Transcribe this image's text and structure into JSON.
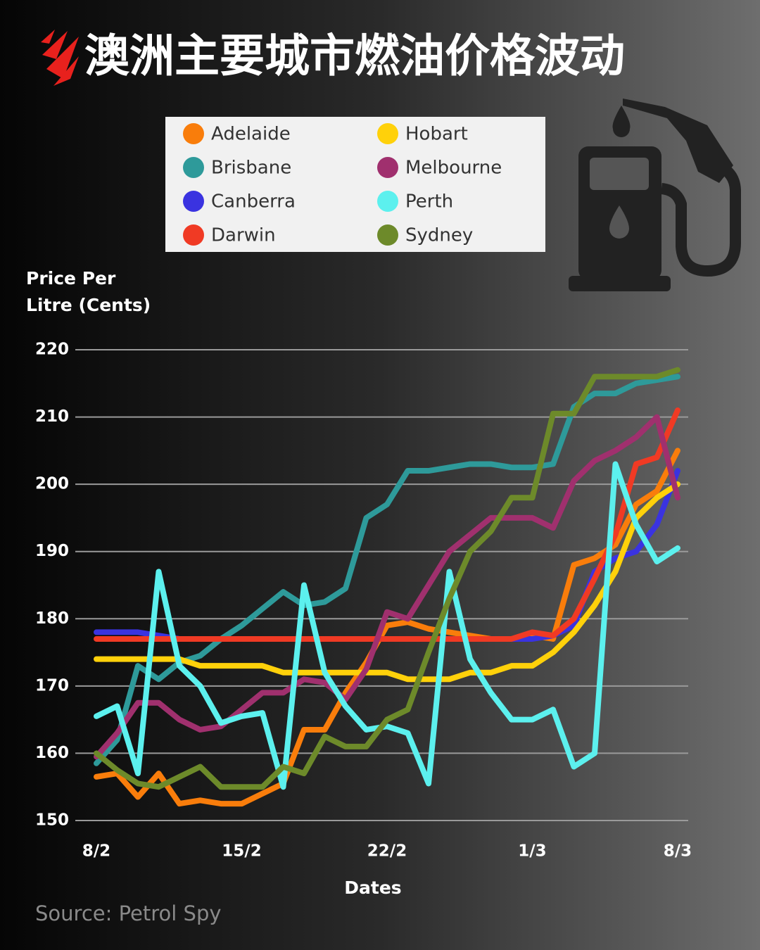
{
  "chart_data": {
    "type": "line",
    "title": "澳洲主要城市燃油价格波动",
    "ylabel": "Price Per Litre (Cents)",
    "xlabel": "Dates",
    "source": "Source: Petrol Spy",
    "categories": [
      "8/2",
      null,
      null,
      null,
      null,
      null,
      null,
      "15/2",
      null,
      null,
      null,
      null,
      null,
      null,
      "22/2",
      null,
      null,
      null,
      null,
      null,
      null,
      "1/3",
      null,
      null,
      null,
      null,
      null,
      null,
      "8/3"
    ],
    "series": [
      {
        "name": "Adelaide",
        "color": "#f97d0b",
        "values": [
          156.5,
          157,
          153.5,
          157,
          152.5,
          153,
          152.5,
          152.5,
          154,
          155.5,
          163.5,
          163.5,
          169,
          173.5,
          179,
          179.5,
          178.5,
          178,
          177.5,
          177,
          177,
          177.5,
          177,
          188,
          189,
          191,
          197,
          199,
          205
        ]
      },
      {
        "name": "Brisbane",
        "color": "#2e9a9a",
        "values": [
          158.5,
          162,
          173,
          171,
          173.5,
          174.5,
          177,
          179,
          181.5,
          184,
          182,
          182.5,
          184.5,
          195,
          197,
          202,
          202,
          202.5,
          203,
          203,
          202.5,
          202.5,
          203,
          211.5,
          213.5,
          213.5,
          215,
          215.5,
          216
        ]
      },
      {
        "name": "Canberra",
        "color": "#3a33e0",
        "values": [
          178,
          178,
          178,
          177.5,
          177,
          177,
          177,
          177,
          177,
          177,
          177,
          177,
          177,
          177,
          177,
          177,
          177,
          177,
          177,
          177,
          177,
          177,
          177.5,
          179,
          187,
          189,
          190,
          194,
          202
        ]
      },
      {
        "name": "Darwin",
        "color": "#f03a24",
        "values": [
          177,
          177,
          177,
          177,
          177,
          177,
          177,
          177,
          177,
          177,
          177,
          177,
          177,
          177,
          177,
          177,
          177,
          177,
          177,
          177,
          177,
          178,
          177.5,
          180,
          186,
          192.5,
          203,
          204,
          211
        ]
      },
      {
        "name": "Hobart",
        "color": "#ffd10a",
        "values": [
          174,
          174,
          174,
          174,
          174,
          173,
          173,
          173,
          173,
          172,
          172,
          172,
          172,
          172,
          172,
          171,
          171,
          171,
          172,
          172,
          173,
          173,
          175,
          178,
          182,
          187,
          195,
          198,
          200
        ]
      },
      {
        "name": "Melbourne",
        "color": "#a0306e",
        "values": [
          159.5,
          163,
          167.5,
          167.5,
          165,
          163.5,
          164,
          166.5,
          169,
          169,
          171,
          170.5,
          168,
          172.5,
          181,
          180,
          185,
          190,
          192.5,
          195,
          195,
          195,
          193.5,
          200.5,
          203.5,
          205,
          207,
          210,
          198
        ]
      },
      {
        "name": "Perth",
        "color": "#5cf0ee",
        "values": [
          165.5,
          167,
          157,
          187,
          173,
          170,
          164.5,
          165.5,
          166,
          155,
          185,
          172,
          167,
          163.5,
          164,
          163,
          155.5,
          187,
          174,
          169,
          165,
          165,
          166.5,
          158,
          160,
          203,
          194,
          188.5,
          190.5
        ]
      },
      {
        "name": "Sydney",
        "color": "#6d8a2a",
        "values": [
          160,
          157.5,
          155.5,
          155,
          156.5,
          158,
          155,
          155,
          155,
          158,
          157,
          162.5,
          161,
          161,
          165,
          166.5,
          175,
          183,
          190,
          193,
          198,
          198,
          210.5,
          210.5,
          216,
          216,
          216,
          216,
          217
        ]
      }
    ],
    "ylim": [
      150,
      220
    ],
    "yticks": [
      150,
      160,
      170,
      180,
      190,
      200,
      210,
      220
    ],
    "grid": true
  }
}
